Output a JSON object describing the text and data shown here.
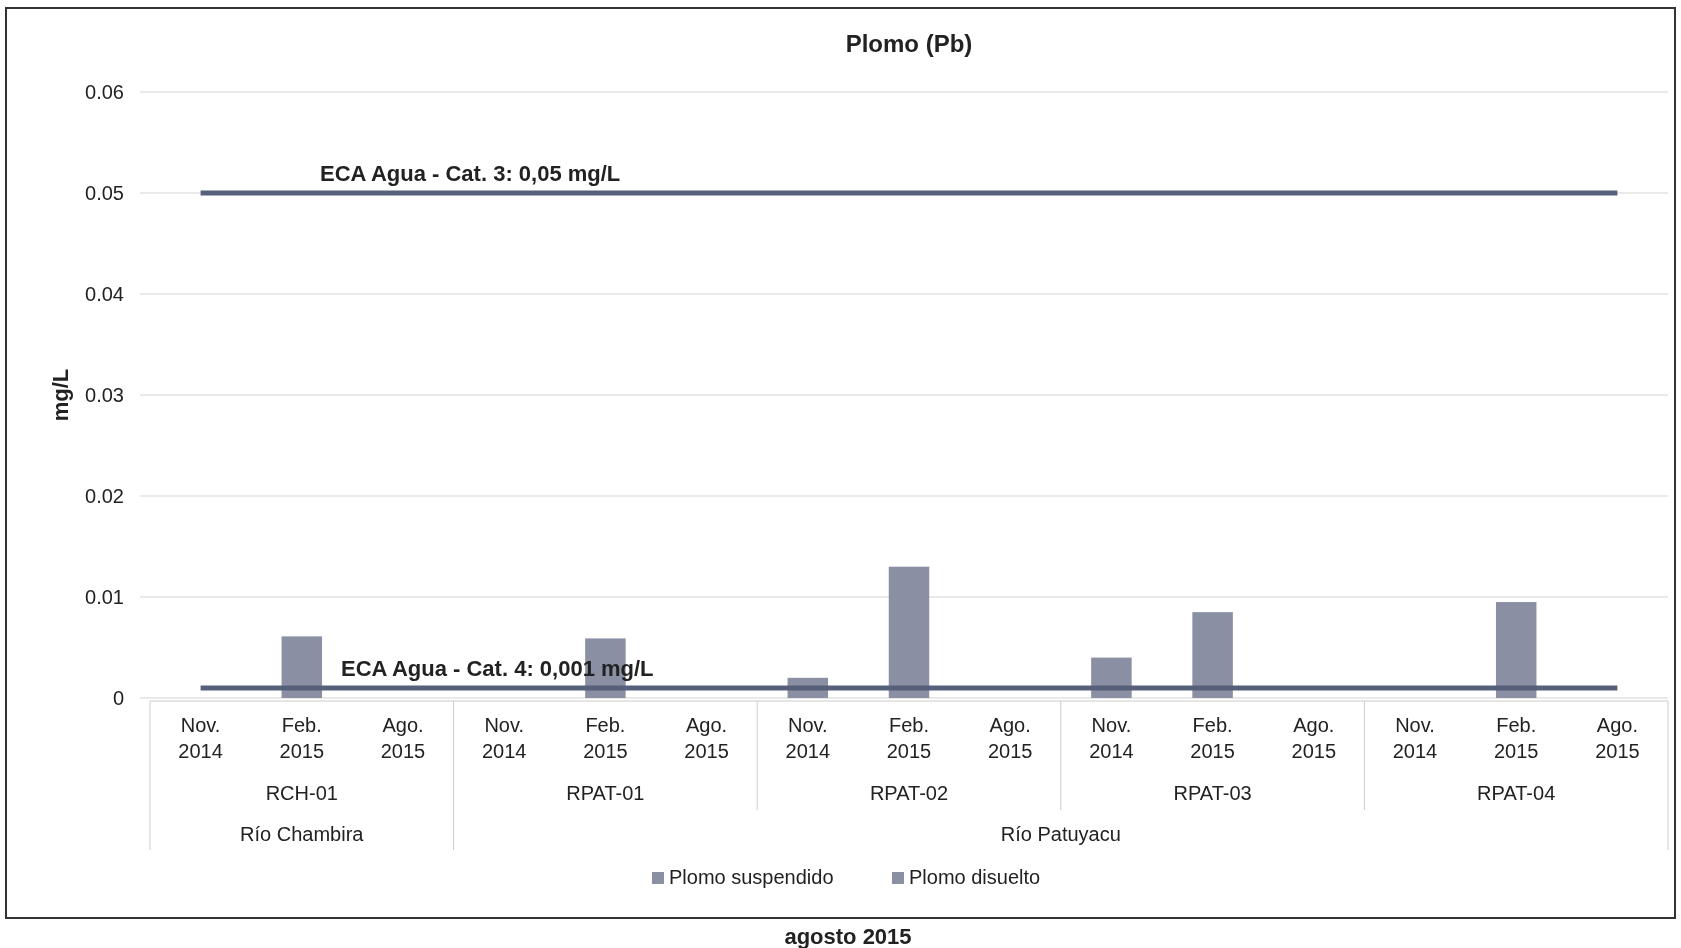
{
  "chart_data": {
    "type": "bar",
    "title": "Plomo (Pb)",
    "ylabel": "mg/L",
    "categories": [
      "Nov. 2014",
      "Feb. 2015",
      "Ago. 2015",
      "Nov. 2014",
      "Feb. 2015",
      "Ago. 2015",
      "Nov. 2014",
      "Feb. 2015",
      "Ago. 2015",
      "Nov. 2014",
      "Feb. 2015",
      "Ago. 2015",
      "Nov. 2014",
      "Feb. 2015",
      "Ago. 2015"
    ],
    "stacked": true,
    "series": [
      {
        "name": "Plomo suspendido",
        "color": "#8a8fa3",
        "values": [
          null,
          0.0061,
          null,
          null,
          0.0059,
          null,
          0.002,
          0.013,
          null,
          0.004,
          0.0085,
          null,
          null,
          0.0095,
          null
        ]
      },
      {
        "name": "Plomo disuelto",
        "color": "#8a8fa3",
        "values": [
          null,
          null,
          null,
          null,
          null,
          null,
          null,
          null,
          null,
          null,
          null,
          null,
          null,
          null,
          null
        ]
      }
    ],
    "ylim": [
      0,
      0.06
    ],
    "yticks": [
      0,
      0.01,
      0.02,
      0.03,
      0.04,
      0.05,
      0.06
    ],
    "grid": "y",
    "legend": "bottom",
    "ref_lines": [
      {
        "axis": "y",
        "value": 0.05,
        "label": "ECA Agua - Cat. 3: 0,05 mg/L",
        "color": "#56607a"
      },
      {
        "axis": "y",
        "value": 0.001,
        "label": "ECA Agua - Cat. 4: 0,001 mg/L",
        "color": "#56607a"
      }
    ],
    "annotations": [
      "RCH-01",
      "RPAT-01",
      "RPAT-02",
      "RPAT-03",
      "RPAT-04",
      "Río Chambira",
      "Río Patuyacu",
      "agosto 2015"
    ]
  }
}
